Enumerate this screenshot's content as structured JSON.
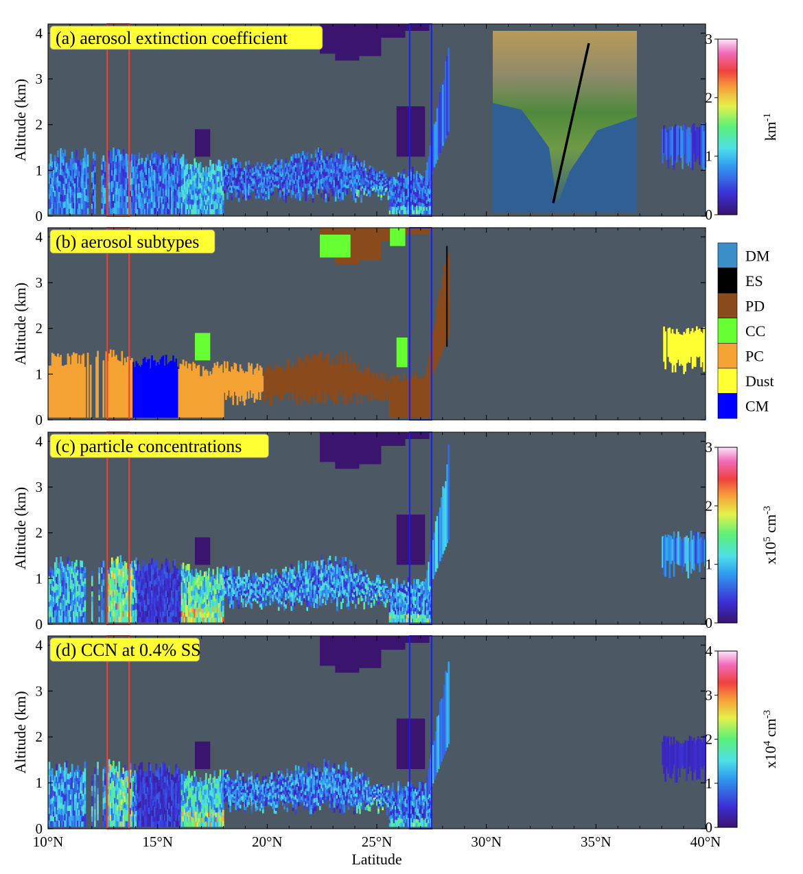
{
  "figure": {
    "xlabel": "Latitude",
    "ylabel": "Altitude (km)"
  },
  "colors": {
    "background": "#4c5863",
    "panel_frame": "#1a1a1a",
    "title_box": "#ffff33",
    "red_box": "#ff3b30",
    "blue_box": "#1a1aff"
  },
  "chart_data": [
    {
      "type": "heatmap",
      "panel": "a",
      "title": "(a) aerosol extinction coefficient",
      "colorbar": {
        "label": "km-1",
        "label_base": "km",
        "label_sup": "-1",
        "range": [
          0,
          3
        ],
        "ticks": [
          0,
          1,
          2,
          3
        ]
      },
      "has_inset_map": true
    },
    {
      "type": "heatmap",
      "panel": "b",
      "title": "(b) aerosol subtypes",
      "legend": [
        {
          "name": "DM",
          "color": "#3a8fc9"
        },
        {
          "name": "ES",
          "color": "#000000"
        },
        {
          "name": "PD",
          "color": "#8b4a1c"
        },
        {
          "name": "CC",
          "color": "#66ff33"
        },
        {
          "name": "PC",
          "color": "#f4a233"
        },
        {
          "name": "Dust",
          "color": "#ffff33"
        },
        {
          "name": "CM",
          "color": "#0000ff"
        }
      ]
    },
    {
      "type": "heatmap",
      "panel": "c",
      "title": "(c) particle concentrations",
      "colorbar": {
        "label": "x105 cm-3",
        "label_base": "x10",
        "label_sup": "5",
        "label_unit": " cm",
        "label_sup2": "-3",
        "range": [
          0,
          3
        ],
        "ticks": [
          0,
          1,
          2,
          3
        ]
      }
    },
    {
      "type": "heatmap",
      "panel": "d",
      "title": "(d) CCN at 0.4% SS",
      "colorbar": {
        "label": "x104 cm-3",
        "label_base": "x10",
        "label_sup": "4",
        "label_unit": " cm",
        "label_sup2": "-3",
        "range": [
          0,
          4
        ],
        "ticks": [
          0,
          1,
          2,
          3,
          4
        ]
      }
    }
  ],
  "axes": {
    "x_range": [
      10,
      40
    ],
    "x_ticks": [
      10,
      15,
      20,
      25,
      30,
      35,
      40
    ],
    "x_tick_labels": [
      "10°N",
      "15°N",
      "20°N",
      "25°N",
      "30°N",
      "35°N",
      "40°N"
    ],
    "y_range": [
      0,
      4.2
    ],
    "y_ticks": [
      0,
      1,
      2,
      3,
      4
    ],
    "y_tick_labels": [
      "0",
      "1",
      "2",
      "3",
      "4"
    ]
  },
  "highlight_boxes": [
    {
      "name": "red",
      "lat_min": 12.7,
      "lat_max": 13.7
    },
    {
      "name": "blue",
      "lat_min": 26.5,
      "lat_max": 27.5
    }
  ]
}
